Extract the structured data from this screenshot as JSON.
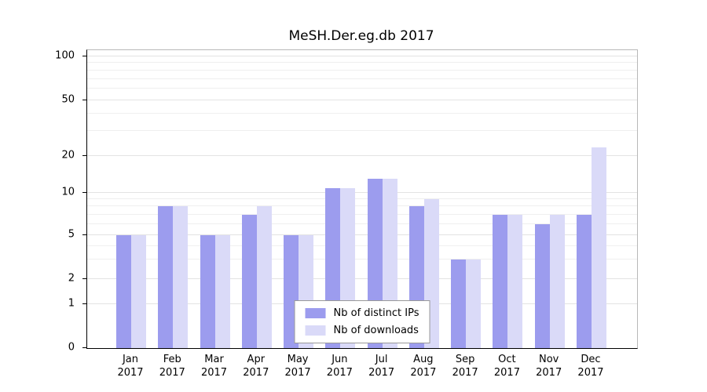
{
  "title": "MeSH.Der.eg.db 2017",
  "chart_data": {
    "type": "bar",
    "title": "MeSH.Der.eg.db 2017",
    "categories": [
      "Jan",
      "Feb",
      "Mar",
      "Apr",
      "May",
      "Jun",
      "Jul",
      "Aug",
      "Sep",
      "Oct",
      "Nov",
      "Dec"
    ],
    "category_year": "2017",
    "series": [
      {
        "name": "Nb of distinct IPs",
        "color": "#9c9cee",
        "values": [
          5,
          8,
          5,
          7,
          5,
          11,
          13,
          8,
          3,
          7,
          6,
          7
        ]
      },
      {
        "name": "Nb of downloads",
        "color": "#dadaf8",
        "values": [
          5,
          8,
          5,
          8,
          5,
          11,
          13,
          9,
          3,
          7,
          7,
          23
        ]
      }
    ],
    "y_ticks": [
      0,
      1,
      2,
      5,
      10,
      20,
      50,
      100
    ],
    "y_scale": "log",
    "ylim": [
      0,
      100
    ],
    "grid": true,
    "legend_position": "bottom-center"
  }
}
